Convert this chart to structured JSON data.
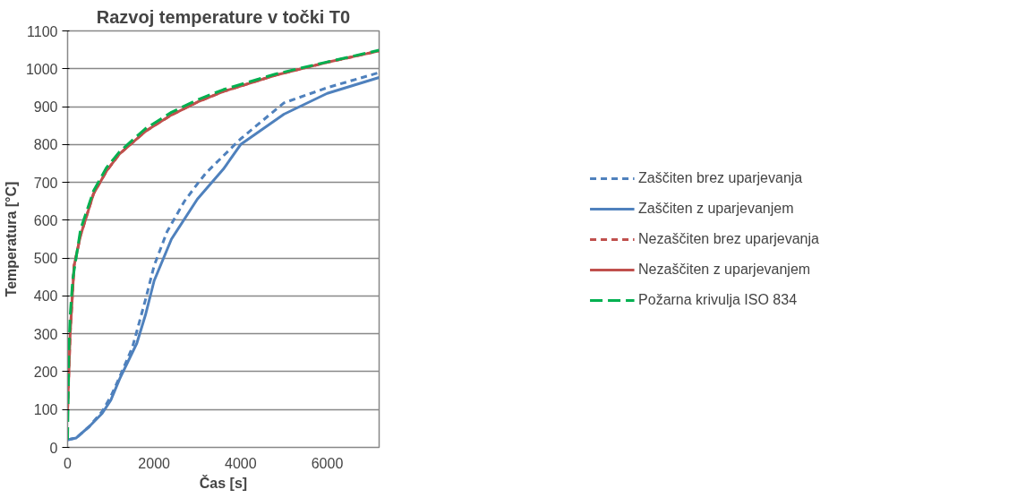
{
  "chart_data": {
    "type": "line",
    "title": "Razvoj temperature v točki T0",
    "xlabel": "Čas [s]",
    "ylabel": "Temperatura [°C]",
    "xlim": [
      0,
      7200
    ],
    "xticks": [
      0,
      2000,
      4000,
      6000
    ],
    "ylim": [
      0,
      1100
    ],
    "yticks": [
      0,
      100,
      200,
      300,
      400,
      500,
      600,
      700,
      800,
      900,
      1000,
      1100
    ],
    "grid": "y",
    "legend": "right",
    "marker": "none",
    "series": [
      {
        "name": "Zaščiten brez uparjevanja",
        "color": "#4f81bd",
        "line_style": "dashed",
        "x": [
          0,
          200,
          500,
          800,
          1000,
          1200,
          1500,
          1800,
          2000,
          2300,
          2700,
          3000,
          3200,
          4000,
          5000,
          6000,
          7200
        ],
        "values": [
          20,
          25,
          55,
          95,
          135,
          185,
          265,
          390,
          480,
          570,
          650,
          696,
          725,
          815,
          910,
          950,
          990
        ]
      },
      {
        "name": "Zaščiten z uparjevanjem",
        "color": "#4f81bd",
        "line_style": "solid",
        "x": [
          0,
          200,
          500,
          800,
          1000,
          1200,
          1600,
          1800,
          2000,
          2400,
          3000,
          3600,
          4000,
          5000,
          6000,
          7200
        ],
        "values": [
          20,
          25,
          55,
          90,
          125,
          180,
          275,
          350,
          440,
          550,
          656,
          735,
          800,
          880,
          935,
          977
        ]
      },
      {
        "name": "Nezaščiten brez uparjevanja",
        "color": "#c0504d",
        "line_style": "dashed",
        "x": [
          0,
          60,
          150,
          300,
          600,
          900,
          1200,
          1800,
          2400,
          3000,
          3600,
          4800,
          6000,
          7200
        ],
        "values": [
          100,
          300,
          480,
          560,
          670,
          730,
          775,
          835,
          878,
          912,
          940,
          983,
          1017,
          1047
        ]
      },
      {
        "name": "Nezaščiten z uparjevanjem",
        "color": "#c0504d",
        "line_style": "solid",
        "x": [
          0,
          60,
          150,
          300,
          600,
          900,
          1200,
          1800,
          2400,
          3000,
          3600,
          4800,
          6000,
          7200
        ],
        "values": [
          100,
          300,
          480,
          560,
          670,
          730,
          775,
          835,
          878,
          912,
          940,
          983,
          1017,
          1047
        ]
      },
      {
        "name": "Požarna krivulja ISO 834",
        "color": "#00b050",
        "line_style": "longdash",
        "x": [
          0,
          30,
          60,
          120,
          300,
          600,
          900,
          1200,
          1800,
          2400,
          3000,
          3600,
          4800,
          6000,
          7200
        ],
        "values": [
          20,
          261,
          349,
          445,
          576,
          678,
          739,
          781,
          842,
          885,
          918,
          945,
          986,
          1018,
          1049
        ]
      }
    ]
  }
}
